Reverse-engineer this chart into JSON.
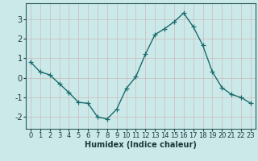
{
  "x": [
    0,
    1,
    2,
    3,
    4,
    5,
    6,
    7,
    8,
    9,
    10,
    11,
    12,
    13,
    14,
    15,
    16,
    17,
    18,
    19,
    20,
    21,
    22,
    23
  ],
  "y": [
    0.8,
    0.3,
    0.15,
    -0.3,
    -0.75,
    -1.25,
    -1.3,
    -2.0,
    -2.1,
    -1.6,
    -0.55,
    0.05,
    1.2,
    2.2,
    2.5,
    2.85,
    3.3,
    2.6,
    1.65,
    0.3,
    -0.5,
    -0.85,
    -1.0,
    -1.3
  ],
  "line_color": "#1a6b6b",
  "marker": "+",
  "marker_size": 4,
  "linewidth": 1.0,
  "bg_color": "#cce9ea",
  "grid_color": "#b8d8d8",
  "xlabel": "Humidex (Indice chaleur)",
  "xlabel_fontsize": 7,
  "tick_fontsize": 6,
  "xlim": [
    -0.5,
    23.5
  ],
  "ylim": [
    -2.6,
    3.8
  ],
  "yticks": [
    -2,
    -1,
    0,
    1,
    2,
    3
  ],
  "xticks": [
    0,
    1,
    2,
    3,
    4,
    5,
    6,
    7,
    8,
    9,
    10,
    11,
    12,
    13,
    14,
    15,
    16,
    17,
    18,
    19,
    20,
    21,
    22,
    23
  ]
}
